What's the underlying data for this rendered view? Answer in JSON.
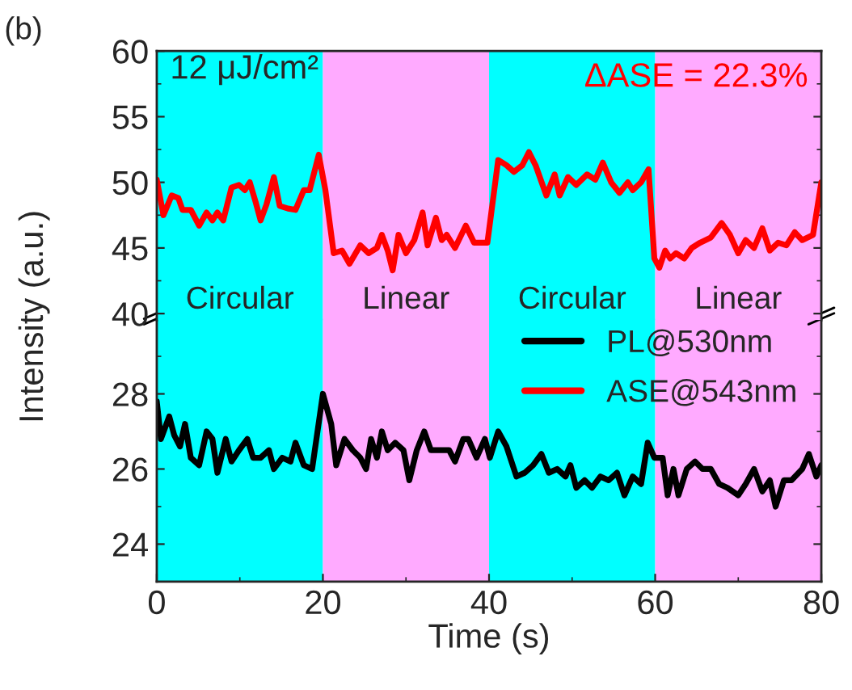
{
  "chart_data": [
    {
      "type": "line",
      "xlim": [
        0,
        80
      ],
      "ylim": [
        39.5,
        60
      ],
      "yticks": [
        40,
        45,
        50,
        55,
        60
      ],
      "tick_labels": "y",
      "grid": false,
      "legend": "bottom right",
      "marker": "none",
      "line_style": "solid",
      "annotations": [
        "(b)",
        "12 μJ/cm²",
        "ΔASE = 22.3%"
      ],
      "bands": [
        {
          "axis": "x",
          "from": 0,
          "to": 20,
          "label": "Circular",
          "color": "#00ffff"
        },
        {
          "axis": "x",
          "from": 20,
          "to": 40,
          "label": "Linear",
          "color": "#ffaaff"
        },
        {
          "axis": "x",
          "from": 40,
          "to": 60,
          "label": "Circular",
          "color": "#00ffff"
        },
        {
          "axis": "x",
          "from": 60,
          "to": 80,
          "label": "Linear",
          "color": "#ffaaff"
        }
      ],
      "series": [
        {
          "name": "ASE@543nm",
          "color": "#ff0000",
          "x": [
            0.0,
            0.8,
            1.8,
            2.6,
            3.1,
            4.1,
            5.1,
            6.0,
            6.7,
            7.3,
            8.0,
            9.0,
            9.9,
            10.6,
            11.2,
            11.9,
            12.5,
            13.2,
            14.1,
            14.8,
            15.8,
            16.7,
            17.7,
            18.4,
            19.5,
            20.3,
            21.3,
            22.3,
            23.2,
            24.5,
            25.5,
            26.5,
            27.1,
            27.8,
            28.4,
            29.1,
            30.0,
            31.0,
            32.0,
            32.6,
            33.6,
            34.3,
            34.9,
            35.9,
            37.2,
            38.2,
            39.8,
            41.1,
            42.1,
            43.0,
            44.0,
            44.8,
            45.6,
            46.9,
            47.9,
            48.5,
            49.5,
            50.5,
            51.8,
            52.8,
            53.7,
            54.7,
            55.7,
            56.7,
            57.3,
            58.3,
            59.2,
            59.9,
            60.5,
            61.2,
            61.8,
            62.5,
            63.5,
            64.4,
            65.4,
            66.7,
            68.0,
            69.0,
            70.0,
            70.9,
            71.9,
            72.9,
            73.8,
            74.8,
            75.8,
            76.8,
            77.7,
            79.0,
            80.0
          ],
          "values": [
            50.2,
            47.5,
            49.0,
            48.8,
            47.9,
            47.9,
            46.7,
            47.7,
            47.1,
            47.7,
            47.1,
            49.6,
            49.8,
            49.4,
            50.0,
            48.5,
            47.1,
            48.3,
            50.4,
            48.2,
            48.0,
            47.9,
            49.4,
            49.4,
            52.1,
            49.4,
            44.6,
            44.8,
            43.8,
            45.2,
            44.6,
            45.0,
            46.0,
            44.8,
            43.3,
            46.0,
            44.6,
            45.6,
            47.7,
            45.2,
            47.3,
            45.6,
            46.0,
            45.0,
            46.7,
            45.4,
            45.4,
            51.7,
            51.3,
            50.8,
            51.3,
            52.3,
            51.3,
            49.0,
            50.6,
            49.0,
            50.4,
            49.8,
            50.6,
            50.2,
            51.5,
            50.0,
            49.2,
            50.0,
            49.4,
            50.0,
            51.0,
            44.2,
            43.5,
            44.8,
            44.2,
            44.6,
            44.2,
            45.0,
            45.4,
            45.8,
            46.9,
            46.0,
            44.6,
            45.6,
            45.0,
            46.5,
            44.8,
            45.4,
            45.2,
            46.2,
            45.6,
            46.0,
            50.0
          ]
        }
      ]
    },
    {
      "type": "line",
      "xlim": [
        0,
        80
      ],
      "xticks": [
        0,
        20,
        40,
        60,
        80
      ],
      "ylim": [
        23,
        30
      ],
      "yticks": [
        24,
        26,
        28
      ],
      "xlabel": "Time (s)",
      "ylabel": "Intensity (a.u.)",
      "grid": false,
      "legend": "top right",
      "marker": "none",
      "line_style": "solid",
      "bands": [
        {
          "axis": "x",
          "from": 0,
          "to": 20,
          "color": "#00ffff"
        },
        {
          "axis": "x",
          "from": 20,
          "to": 40,
          "color": "#ffaaff"
        },
        {
          "axis": "x",
          "from": 40,
          "to": 60,
          "color": "#00ffff"
        },
        {
          "axis": "x",
          "from": 60,
          "to": 80,
          "color": "#ffaaff"
        }
      ],
      "series": [
        {
          "name": "PL@530nm",
          "color": "#000000",
          "x": [
            0.0,
            0.5,
            1.5,
            2.1,
            2.8,
            3.4,
            4.1,
            5.1,
            6.0,
            6.7,
            7.3,
            8.3,
            9.0,
            9.9,
            10.9,
            11.6,
            12.5,
            13.5,
            14.1,
            15.1,
            16.1,
            16.7,
            17.7,
            18.7,
            20.0,
            21.0,
            21.6,
            22.6,
            23.6,
            24.5,
            25.2,
            25.8,
            26.5,
            27.1,
            27.8,
            28.7,
            29.7,
            30.4,
            31.3,
            32.2,
            33.0,
            34.3,
            35.2,
            35.9,
            36.9,
            37.5,
            38.5,
            39.5,
            40.1,
            41.1,
            42.1,
            43.3,
            44.3,
            45.3,
            46.3,
            47.2,
            48.2,
            49.2,
            49.8,
            50.5,
            51.5,
            52.4,
            53.4,
            54.4,
            55.4,
            56.3,
            57.3,
            58.3,
            59.1,
            59.9,
            60.9,
            61.5,
            62.2,
            62.8,
            63.8,
            64.8,
            65.7,
            66.7,
            67.7,
            68.7,
            70.0,
            70.9,
            71.9,
            72.9,
            73.8,
            74.5,
            75.5,
            76.4,
            77.7,
            78.5,
            79.4,
            80.0
          ],
          "values": [
            27.8,
            26.8,
            27.4,
            26.9,
            26.6,
            27.2,
            26.3,
            26.1,
            27.0,
            26.8,
            25.9,
            26.8,
            26.2,
            26.5,
            26.8,
            26.3,
            26.3,
            26.5,
            26.0,
            26.3,
            26.2,
            26.7,
            26.1,
            26.0,
            28.0,
            27.2,
            26.1,
            26.8,
            26.5,
            26.3,
            26.0,
            26.8,
            26.3,
            27.0,
            26.5,
            26.7,
            26.5,
            25.7,
            26.5,
            27.0,
            26.5,
            26.5,
            26.5,
            26.2,
            26.8,
            26.8,
            26.3,
            26.8,
            26.3,
            27.0,
            26.6,
            25.8,
            25.9,
            26.1,
            26.4,
            25.9,
            26.0,
            25.8,
            26.1,
            25.5,
            25.7,
            25.5,
            25.8,
            25.7,
            25.9,
            25.3,
            25.8,
            25.6,
            26.7,
            26.3,
            26.3,
            25.3,
            26.0,
            25.3,
            26.0,
            26.2,
            26.0,
            26.0,
            25.6,
            25.5,
            25.3,
            25.6,
            26.0,
            25.4,
            25.7,
            25.0,
            25.7,
            25.7,
            26.0,
            26.4,
            25.8,
            26.1
          ]
        }
      ]
    }
  ]
}
